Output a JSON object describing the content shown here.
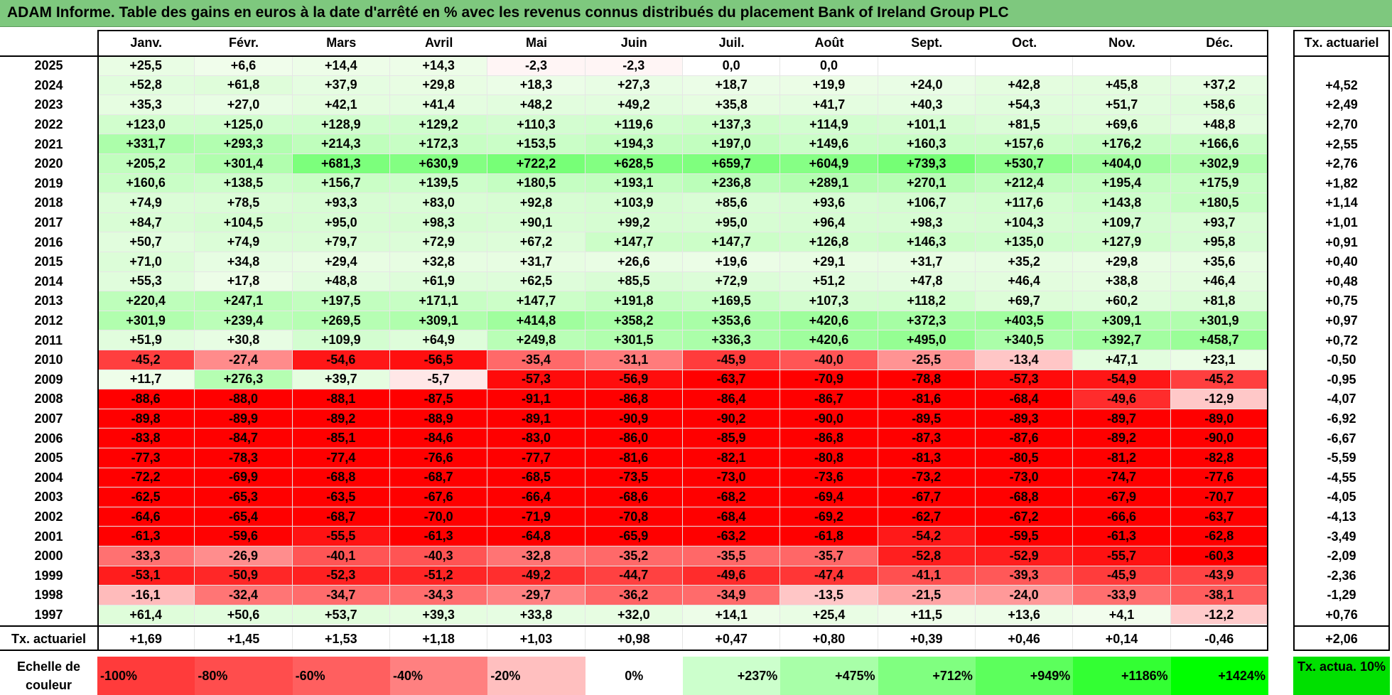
{
  "title": "ADAM Informe. Table des gains en euros à la date d'arrêté en % avec les revenus connus distribués du placement Bank of Ireland Group PLC",
  "colors": {
    "title_bg": "#7ec87e",
    "negative_strong": "#ff0000",
    "positive_strong": "#00e000",
    "neutral": "#ffffff"
  },
  "chart_data": {
    "type": "heatmap",
    "months": [
      "Janv.",
      "Févr.",
      "Mars",
      "Avril",
      "Mai",
      "Juin",
      "Juil.",
      "Août",
      "Sept.",
      "Oct.",
      "Nov.",
      "Déc."
    ],
    "rate_column_label": "Tx. actuariel",
    "rows": [
      {
        "year": "2025",
        "values": [
          "+25,5",
          "+6,6",
          "+14,4",
          "+14,3",
          "-2,3",
          "-2,3",
          "0,0",
          "0,0",
          "",
          "",
          "",
          ""
        ],
        "rate": ""
      },
      {
        "year": "2024",
        "values": [
          "+52,8",
          "+61,8",
          "+37,9",
          "+29,8",
          "+18,3",
          "+27,3",
          "+18,7",
          "+19,9",
          "+24,0",
          "+42,8",
          "+45,8",
          "+37,2"
        ],
        "rate": "+4,52"
      },
      {
        "year": "2023",
        "values": [
          "+35,3",
          "+27,0",
          "+42,1",
          "+41,4",
          "+48,2",
          "+49,2",
          "+35,8",
          "+41,7",
          "+40,3",
          "+54,3",
          "+51,7",
          "+58,6"
        ],
        "rate": "+2,49"
      },
      {
        "year": "2022",
        "values": [
          "+123,0",
          "+125,0",
          "+128,9",
          "+129,2",
          "+110,3",
          "+119,6",
          "+137,3",
          "+114,9",
          "+101,1",
          "+81,5",
          "+69,6",
          "+48,8"
        ],
        "rate": "+2,70"
      },
      {
        "year": "2021",
        "values": [
          "+331,7",
          "+293,3",
          "+214,3",
          "+172,3",
          "+153,5",
          "+194,3",
          "+197,0",
          "+149,6",
          "+160,3",
          "+157,6",
          "+176,2",
          "+166,6"
        ],
        "rate": "+2,55"
      },
      {
        "year": "2020",
        "values": [
          "+205,2",
          "+301,4",
          "+681,3",
          "+630,9",
          "+722,2",
          "+628,5",
          "+659,7",
          "+604,9",
          "+739,3",
          "+530,7",
          "+404,0",
          "+302,9"
        ],
        "rate": "+2,76"
      },
      {
        "year": "2019",
        "values": [
          "+160,6",
          "+138,5",
          "+156,7",
          "+139,5",
          "+180,5",
          "+193,1",
          "+236,8",
          "+289,1",
          "+270,1",
          "+212,4",
          "+195,4",
          "+175,9"
        ],
        "rate": "+1,82"
      },
      {
        "year": "2018",
        "values": [
          "+74,9",
          "+78,5",
          "+93,3",
          "+83,0",
          "+92,8",
          "+103,9",
          "+85,6",
          "+93,6",
          "+106,7",
          "+117,6",
          "+143,8",
          "+180,5"
        ],
        "rate": "+1,14"
      },
      {
        "year": "2017",
        "values": [
          "+84,7",
          "+104,5",
          "+95,0",
          "+98,3",
          "+90,1",
          "+99,2",
          "+95,0",
          "+96,4",
          "+98,3",
          "+104,3",
          "+109,7",
          "+93,7"
        ],
        "rate": "+1,01"
      },
      {
        "year": "2016",
        "values": [
          "+50,7",
          "+74,9",
          "+79,7",
          "+72,9",
          "+67,2",
          "+147,7",
          "+147,7",
          "+126,8",
          "+146,3",
          "+135,0",
          "+127,9",
          "+95,8"
        ],
        "rate": "+0,91"
      },
      {
        "year": "2015",
        "values": [
          "+71,0",
          "+34,8",
          "+29,4",
          "+32,8",
          "+31,7",
          "+26,6",
          "+19,6",
          "+29,1",
          "+31,7",
          "+35,2",
          "+29,8",
          "+35,6"
        ],
        "rate": "+0,40"
      },
      {
        "year": "2014",
        "values": [
          "+55,3",
          "+17,8",
          "+48,8",
          "+61,9",
          "+62,5",
          "+85,5",
          "+72,9",
          "+51,2",
          "+47,8",
          "+46,4",
          "+38,8",
          "+46,4"
        ],
        "rate": "+0,48"
      },
      {
        "year": "2013",
        "values": [
          "+220,4",
          "+247,1",
          "+197,5",
          "+171,1",
          "+147,7",
          "+191,8",
          "+169,5",
          "+107,3",
          "+118,2",
          "+69,7",
          "+60,2",
          "+81,8"
        ],
        "rate": "+0,75"
      },
      {
        "year": "2012",
        "values": [
          "+301,9",
          "+239,4",
          "+269,5",
          "+309,1",
          "+414,8",
          "+358,2",
          "+353,6",
          "+420,6",
          "+372,3",
          "+403,5",
          "+309,1",
          "+301,9"
        ],
        "rate": "+0,97"
      },
      {
        "year": "2011",
        "values": [
          "+51,9",
          "+30,8",
          "+109,9",
          "+64,9",
          "+249,8",
          "+301,5",
          "+336,3",
          "+420,6",
          "+495,0",
          "+340,5",
          "+392,7",
          "+458,7"
        ],
        "rate": "+0,72"
      },
      {
        "year": "2010",
        "values": [
          "-45,2",
          "-27,4",
          "-54,6",
          "-56,5",
          "-35,4",
          "-31,1",
          "-45,9",
          "-40,0",
          "-25,5",
          "-13,4",
          "+47,1",
          "+23,1"
        ],
        "rate": "-0,50"
      },
      {
        "year": "2009",
        "values": [
          "+11,7",
          "+276,3",
          "+39,7",
          "-5,7",
          "-57,3",
          "-56,9",
          "-63,7",
          "-70,9",
          "-78,8",
          "-57,3",
          "-54,9",
          "-45,2"
        ],
        "rate": "-0,95"
      },
      {
        "year": "2008",
        "values": [
          "-88,6",
          "-88,0",
          "-88,1",
          "-87,5",
          "-91,1",
          "-86,8",
          "-86,4",
          "-86,7",
          "-81,6",
          "-68,4",
          "-49,6",
          "-12,9"
        ],
        "rate": "-4,07"
      },
      {
        "year": "2007",
        "values": [
          "-89,8",
          "-89,9",
          "-89,2",
          "-88,9",
          "-89,1",
          "-90,9",
          "-90,2",
          "-90,0",
          "-89,5",
          "-89,3",
          "-89,7",
          "-89,0"
        ],
        "rate": "-6,92"
      },
      {
        "year": "2006",
        "values": [
          "-83,8",
          "-84,7",
          "-85,1",
          "-84,6",
          "-83,0",
          "-86,0",
          "-85,9",
          "-86,8",
          "-87,3",
          "-87,6",
          "-89,2",
          "-90,0"
        ],
        "rate": "-6,67"
      },
      {
        "year": "2005",
        "values": [
          "-77,3",
          "-78,3",
          "-77,4",
          "-76,6",
          "-77,7",
          "-81,6",
          "-82,1",
          "-80,8",
          "-81,3",
          "-80,5",
          "-81,2",
          "-82,8"
        ],
        "rate": "-5,59"
      },
      {
        "year": "2004",
        "values": [
          "-72,2",
          "-69,9",
          "-68,8",
          "-68,7",
          "-68,5",
          "-73,5",
          "-73,0",
          "-73,6",
          "-73,2",
          "-73,0",
          "-74,7",
          "-77,6"
        ],
        "rate": "-4,55"
      },
      {
        "year": "2003",
        "values": [
          "-62,5",
          "-65,3",
          "-63,5",
          "-67,6",
          "-66,4",
          "-68,6",
          "-68,2",
          "-69,4",
          "-67,7",
          "-68,8",
          "-67,9",
          "-70,7"
        ],
        "rate": "-4,05"
      },
      {
        "year": "2002",
        "values": [
          "-64,6",
          "-65,4",
          "-68,7",
          "-70,0",
          "-71,9",
          "-70,8",
          "-68,4",
          "-69,2",
          "-62,7",
          "-67,2",
          "-66,6",
          "-63,7"
        ],
        "rate": "-4,13"
      },
      {
        "year": "2001",
        "values": [
          "-61,3",
          "-59,6",
          "-55,5",
          "-61,3",
          "-64,8",
          "-65,9",
          "-63,2",
          "-61,8",
          "-54,2",
          "-59,5",
          "-61,3",
          "-62,8"
        ],
        "rate": "-3,49"
      },
      {
        "year": "2000",
        "values": [
          "-33,3",
          "-26,9",
          "-40,1",
          "-40,3",
          "-32,8",
          "-35,2",
          "-35,5",
          "-35,7",
          "-52,8",
          "-52,9",
          "-55,7",
          "-60,3"
        ],
        "rate": "-2,09"
      },
      {
        "year": "1999",
        "values": [
          "-53,1",
          "-50,9",
          "-52,3",
          "-51,2",
          "-49,2",
          "-44,7",
          "-49,6",
          "-47,4",
          "-41,1",
          "-39,3",
          "-45,9",
          "-43,9"
        ],
        "rate": "-2,36"
      },
      {
        "year": "1998",
        "values": [
          "-16,1",
          "-32,4",
          "-34,7",
          "-34,3",
          "-29,7",
          "-36,2",
          "-34,9",
          "-13,5",
          "-21,5",
          "-24,0",
          "-33,9",
          "-38,1"
        ],
        "rate": "-1,29"
      },
      {
        "year": "1997",
        "values": [
          "+61,4",
          "+50,6",
          "+53,7",
          "+39,3",
          "+33,8",
          "+32,0",
          "+14,1",
          "+25,4",
          "+11,5",
          "+13,6",
          "+4,1",
          "-12,2"
        ],
        "rate": "+0,76"
      }
    ],
    "summary_row": {
      "label": "Tx. actuariel",
      "values": [
        "+1,69",
        "+1,45",
        "+1,53",
        "+1,18",
        "+1,03",
        "+0,98",
        "+0,47",
        "+0,80",
        "+0,39",
        "+0,46",
        "+0,14",
        "-0,46"
      ],
      "rate": "+2,06"
    },
    "legend": {
      "label": "Echelle de couleur",
      "steps": [
        "-100%",
        "-80%",
        "-60%",
        "-40%",
        "-20%",
        "0%",
        "+237%",
        "+475%",
        "+712%",
        "+949%",
        "+1186%",
        "+1424%"
      ],
      "step_colors": [
        "#ff3b3b",
        "#ff4d4d",
        "#ff5f5f",
        "#ff8080",
        "#ffbfbf",
        "#ffffff",
        "#ccffcc",
        "#a8ffa8",
        "#80ff80",
        "#5cff5c",
        "#33ff33",
        "#00ff00"
      ],
      "rate_legend": "Tx. actua. 10%",
      "rate_legend_color": "#00e000"
    }
  }
}
